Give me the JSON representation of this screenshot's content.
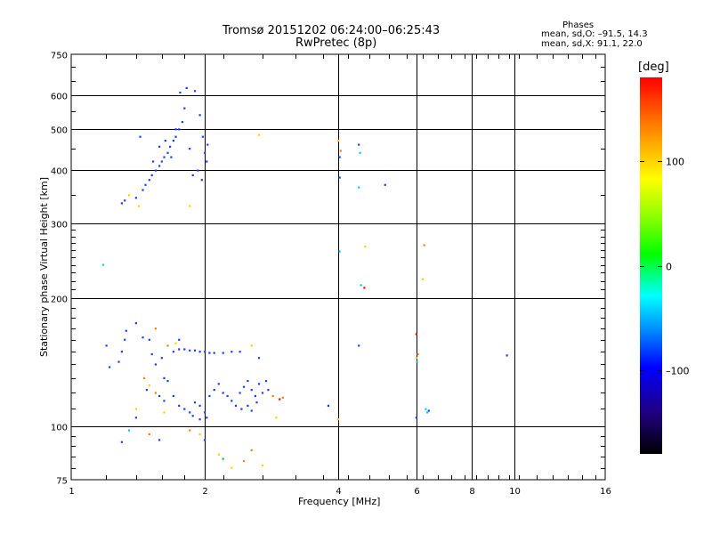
{
  "header": {
    "title_line1": "Tromsø 20151202 06:24:00–06:25:43",
    "title_line2": "RwPretec (8p)",
    "phases_heading": "Phases",
    "phases_o": "mean, sd,O: –91.5, 14.3",
    "phases_x": "mean, sd,X:  91.1, 22.0"
  },
  "colorbar": {
    "unit": "[deg]",
    "ticks": [
      {
        "label": "100",
        "value": 100
      },
      {
        "label": "0",
        "value": 0
      },
      {
        "label": "–100",
        "value": -100
      }
    ],
    "range": [
      -180,
      180
    ]
  },
  "chart_data": {
    "type": "scatter",
    "xlabel": "Frequency [MHz]",
    "ylabel": "Stationary phase Virtual Height [km]",
    "xscale": "log",
    "yscale": "log",
    "xlim": [
      1,
      16
    ],
    "ylim": [
      75,
      750
    ],
    "x_ticks": [
      {
        "label": "1",
        "value": 1
      },
      {
        "label": "2",
        "value": 2
      },
      {
        "label": "4",
        "value": 4
      },
      {
        "label": "6",
        "value": 6
      },
      {
        "label": "8",
        "value": 8
      },
      {
        "label": "10",
        "value": 10
      },
      {
        "label": "16",
        "value": 16
      }
    ],
    "y_ticks": [
      {
        "label": "75",
        "value": 75
      },
      {
        "label": "100",
        "value": 100
      },
      {
        "label": "200",
        "value": 200
      },
      {
        "label": "300",
        "value": 300
      },
      {
        "label": "400",
        "value": 400
      },
      {
        "label": "500",
        "value": 500
      },
      {
        "label": "600",
        "value": 600
      },
      {
        "label": "750",
        "value": 750
      }
    ],
    "grid": true,
    "colors": {
      "blue": "#1a3cff",
      "cyan": "#00ccee",
      "yellow": "#ffd000",
      "orange": "#ff8000",
      "red": "#ff0000",
      "green": "#20c020"
    },
    "points": [
      {
        "x": 1.3,
        "y": 335,
        "c": "blue"
      },
      {
        "x": 1.32,
        "y": 340,
        "c": "blue"
      },
      {
        "x": 1.4,
        "y": 345,
        "c": "blue"
      },
      {
        "x": 1.45,
        "y": 360,
        "c": "blue"
      },
      {
        "x": 1.47,
        "y": 370,
        "c": "blue"
      },
      {
        "x": 1.5,
        "y": 380,
        "c": "blue"
      },
      {
        "x": 1.52,
        "y": 390,
        "c": "blue"
      },
      {
        "x": 1.55,
        "y": 400,
        "c": "blue"
      },
      {
        "x": 1.58,
        "y": 410,
        "c": "blue"
      },
      {
        "x": 1.6,
        "y": 420,
        "c": "blue"
      },
      {
        "x": 1.62,
        "y": 430,
        "c": "blue"
      },
      {
        "x": 1.65,
        "y": 440,
        "c": "blue"
      },
      {
        "x": 1.67,
        "y": 455,
        "c": "blue"
      },
      {
        "x": 1.7,
        "y": 470,
        "c": "blue"
      },
      {
        "x": 1.72,
        "y": 480,
        "c": "blue"
      },
      {
        "x": 1.75,
        "y": 500,
        "c": "blue"
      },
      {
        "x": 1.78,
        "y": 520,
        "c": "blue"
      },
      {
        "x": 1.8,
        "y": 560,
        "c": "blue"
      },
      {
        "x": 1.76,
        "y": 610,
        "c": "blue"
      },
      {
        "x": 1.82,
        "y": 625,
        "c": "blue"
      },
      {
        "x": 1.9,
        "y": 615,
        "c": "blue"
      },
      {
        "x": 1.95,
        "y": 540,
        "c": "blue"
      },
      {
        "x": 1.98,
        "y": 480,
        "c": "blue"
      },
      {
        "x": 2.0,
        "y": 440,
        "c": "blue"
      },
      {
        "x": 2.02,
        "y": 420,
        "c": "blue"
      },
      {
        "x": 1.93,
        "y": 400,
        "c": "blue"
      },
      {
        "x": 1.88,
        "y": 390,
        "c": "blue"
      },
      {
        "x": 1.97,
        "y": 380,
        "c": "blue"
      },
      {
        "x": 2.03,
        "y": 460,
        "c": "blue"
      },
      {
        "x": 1.85,
        "y": 450,
        "c": "blue"
      },
      {
        "x": 1.68,
        "y": 430,
        "c": "blue"
      },
      {
        "x": 1.72,
        "y": 500,
        "c": "blue"
      },
      {
        "x": 1.63,
        "y": 470,
        "c": "blue"
      },
      {
        "x": 1.58,
        "y": 455,
        "c": "blue"
      },
      {
        "x": 1.53,
        "y": 420,
        "c": "blue"
      },
      {
        "x": 1.43,
        "y": 480,
        "c": "blue"
      },
      {
        "x": 1.35,
        "y": 350,
        "c": "yellow"
      },
      {
        "x": 1.42,
        "y": 330,
        "c": "yellow"
      },
      {
        "x": 1.85,
        "y": 330,
        "c": "yellow"
      },
      {
        "x": 2.65,
        "y": 485,
        "c": "yellow"
      },
      {
        "x": 4.0,
        "y": 470,
        "c": "yellow"
      },
      {
        "x": 4.05,
        "y": 445,
        "c": "orange"
      },
      {
        "x": 4.03,
        "y": 430,
        "c": "blue"
      },
      {
        "x": 4.03,
        "y": 385,
        "c": "blue"
      },
      {
        "x": 4.45,
        "y": 460,
        "c": "blue"
      },
      {
        "x": 4.48,
        "y": 440,
        "c": "cyan"
      },
      {
        "x": 4.45,
        "y": 365,
        "c": "cyan"
      },
      {
        "x": 5.1,
        "y": 370,
        "c": "blue"
      },
      {
        "x": 4.03,
        "y": 258,
        "c": "cyan"
      },
      {
        "x": 4.6,
        "y": 265,
        "c": "yellow"
      },
      {
        "x": 4.5,
        "y": 215,
        "c": "cyan"
      },
      {
        "x": 4.58,
        "y": 212,
        "c": "red"
      },
      {
        "x": 6.25,
        "y": 267,
        "c": "orange"
      },
      {
        "x": 6.2,
        "y": 222,
        "c": "yellow"
      },
      {
        "x": 1.18,
        "y": 240,
        "c": "cyan"
      },
      {
        "x": 1.2,
        "y": 155,
        "c": "blue"
      },
      {
        "x": 1.22,
        "y": 138,
        "c": "blue"
      },
      {
        "x": 1.28,
        "y": 142,
        "c": "blue"
      },
      {
        "x": 1.3,
        "y": 150,
        "c": "blue"
      },
      {
        "x": 1.32,
        "y": 160,
        "c": "blue"
      },
      {
        "x": 1.4,
        "y": 175,
        "c": "blue"
      },
      {
        "x": 1.45,
        "y": 162,
        "c": "blue"
      },
      {
        "x": 1.5,
        "y": 160,
        "c": "blue"
      },
      {
        "x": 1.52,
        "y": 148,
        "c": "blue"
      },
      {
        "x": 1.55,
        "y": 140,
        "c": "blue"
      },
      {
        "x": 1.6,
        "y": 145,
        "c": "blue"
      },
      {
        "x": 1.62,
        "y": 130,
        "c": "blue"
      },
      {
        "x": 1.65,
        "y": 128,
        "c": "blue"
      },
      {
        "x": 1.7,
        "y": 150,
        "c": "blue"
      },
      {
        "x": 1.75,
        "y": 152,
        "c": "blue"
      },
      {
        "x": 1.8,
        "y": 152,
        "c": "blue"
      },
      {
        "x": 1.85,
        "y": 151,
        "c": "blue"
      },
      {
        "x": 1.9,
        "y": 151,
        "c": "blue"
      },
      {
        "x": 1.95,
        "y": 150,
        "c": "blue"
      },
      {
        "x": 2.0,
        "y": 150,
        "c": "blue"
      },
      {
        "x": 2.05,
        "y": 149,
        "c": "blue"
      },
      {
        "x": 2.1,
        "y": 149,
        "c": "blue"
      },
      {
        "x": 2.2,
        "y": 149,
        "c": "blue"
      },
      {
        "x": 2.3,
        "y": 150,
        "c": "blue"
      },
      {
        "x": 2.4,
        "y": 150,
        "c": "blue"
      },
      {
        "x": 1.65,
        "y": 155,
        "c": "orange"
      },
      {
        "x": 1.72,
        "y": 157,
        "c": "yellow"
      },
      {
        "x": 1.46,
        "y": 130,
        "c": "orange"
      },
      {
        "x": 1.5,
        "y": 125,
        "c": "yellow"
      },
      {
        "x": 1.55,
        "y": 120,
        "c": "orange"
      },
      {
        "x": 1.48,
        "y": 122,
        "c": "blue"
      },
      {
        "x": 1.58,
        "y": 118,
        "c": "blue"
      },
      {
        "x": 1.62,
        "y": 115,
        "c": "blue"
      },
      {
        "x": 1.7,
        "y": 118,
        "c": "blue"
      },
      {
        "x": 1.75,
        "y": 112,
        "c": "blue"
      },
      {
        "x": 1.8,
        "y": 110,
        "c": "blue"
      },
      {
        "x": 1.85,
        "y": 108,
        "c": "blue"
      },
      {
        "x": 1.9,
        "y": 114,
        "c": "blue"
      },
      {
        "x": 1.95,
        "y": 112,
        "c": "blue"
      },
      {
        "x": 2.0,
        "y": 108,
        "c": "blue"
      },
      {
        "x": 2.02,
        "y": 105,
        "c": "blue"
      },
      {
        "x": 1.95,
        "y": 104,
        "c": "blue"
      },
      {
        "x": 1.88,
        "y": 106,
        "c": "blue"
      },
      {
        "x": 2.05,
        "y": 118,
        "c": "blue"
      },
      {
        "x": 2.1,
        "y": 122,
        "c": "blue"
      },
      {
        "x": 2.15,
        "y": 126,
        "c": "blue"
      },
      {
        "x": 2.2,
        "y": 120,
        "c": "blue"
      },
      {
        "x": 2.25,
        "y": 118,
        "c": "blue"
      },
      {
        "x": 2.3,
        "y": 115,
        "c": "blue"
      },
      {
        "x": 2.35,
        "y": 112,
        "c": "blue"
      },
      {
        "x": 2.4,
        "y": 120,
        "c": "blue"
      },
      {
        "x": 2.45,
        "y": 124,
        "c": "blue"
      },
      {
        "x": 2.5,
        "y": 128,
        "c": "blue"
      },
      {
        "x": 2.55,
        "y": 122,
        "c": "blue"
      },
      {
        "x": 2.6,
        "y": 118,
        "c": "blue"
      },
      {
        "x": 2.65,
        "y": 126,
        "c": "blue"
      },
      {
        "x": 2.7,
        "y": 120,
        "c": "blue"
      },
      {
        "x": 2.75,
        "y": 128,
        "c": "blue"
      },
      {
        "x": 2.78,
        "y": 122,
        "c": "blue"
      },
      {
        "x": 2.5,
        "y": 112,
        "c": "blue"
      },
      {
        "x": 2.42,
        "y": 110,
        "c": "blue"
      },
      {
        "x": 2.55,
        "y": 109,
        "c": "blue"
      },
      {
        "x": 2.62,
        "y": 114,
        "c": "blue"
      },
      {
        "x": 2.85,
        "y": 118,
        "c": "orange"
      },
      {
        "x": 2.95,
        "y": 116,
        "c": "red"
      },
      {
        "x": 3.0,
        "y": 117,
        "c": "orange"
      },
      {
        "x": 2.9,
        "y": 105,
        "c": "yellow"
      },
      {
        "x": 2.65,
        "y": 145,
        "c": "blue"
      },
      {
        "x": 2.55,
        "y": 155,
        "c": "yellow"
      },
      {
        "x": 1.62,
        "y": 108,
        "c": "yellow"
      },
      {
        "x": 1.4,
        "y": 110,
        "c": "yellow"
      },
      {
        "x": 1.4,
        "y": 105,
        "c": "blue"
      },
      {
        "x": 1.35,
        "y": 98,
        "c": "cyan"
      },
      {
        "x": 1.3,
        "y": 92,
        "c": "blue"
      },
      {
        "x": 1.5,
        "y": 96,
        "c": "orange"
      },
      {
        "x": 1.58,
        "y": 93,
        "c": "blue"
      },
      {
        "x": 1.85,
        "y": 98,
        "c": "orange"
      },
      {
        "x": 1.95,
        "y": 96,
        "c": "yellow"
      },
      {
        "x": 2.0,
        "y": 93,
        "c": "blue"
      },
      {
        "x": 2.15,
        "y": 86,
        "c": "yellow"
      },
      {
        "x": 2.2,
        "y": 84,
        "c": "green"
      },
      {
        "x": 2.3,
        "y": 80,
        "c": "yellow"
      },
      {
        "x": 2.45,
        "y": 83,
        "c": "orange"
      },
      {
        "x": 2.55,
        "y": 88,
        "c": "orange"
      },
      {
        "x": 2.7,
        "y": 81,
        "c": "yellow"
      },
      {
        "x": 1.75,
        "y": 160,
        "c": "blue"
      },
      {
        "x": 1.55,
        "y": 170,
        "c": "orange"
      },
      {
        "x": 1.33,
        "y": 168,
        "c": "blue"
      },
      {
        "x": 3.8,
        "y": 112,
        "c": "blue"
      },
      {
        "x": 4.0,
        "y": 104,
        "c": "yellow"
      },
      {
        "x": 4.45,
        "y": 155,
        "c": "blue"
      },
      {
        "x": 6.0,
        "y": 165,
        "c": "red"
      },
      {
        "x": 6.05,
        "y": 148,
        "c": "orange"
      },
      {
        "x": 6.0,
        "y": 145,
        "c": "yellow"
      },
      {
        "x": 6.02,
        "y": 142,
        "c": "cyan"
      },
      {
        "x": 6.0,
        "y": 105,
        "c": "blue"
      },
      {
        "x": 6.3,
        "y": 110,
        "c": "cyan"
      },
      {
        "x": 6.35,
        "y": 108,
        "c": "cyan"
      },
      {
        "x": 6.4,
        "y": 109,
        "c": "blue"
      },
      {
        "x": 9.6,
        "y": 147,
        "c": "blue"
      }
    ]
  }
}
